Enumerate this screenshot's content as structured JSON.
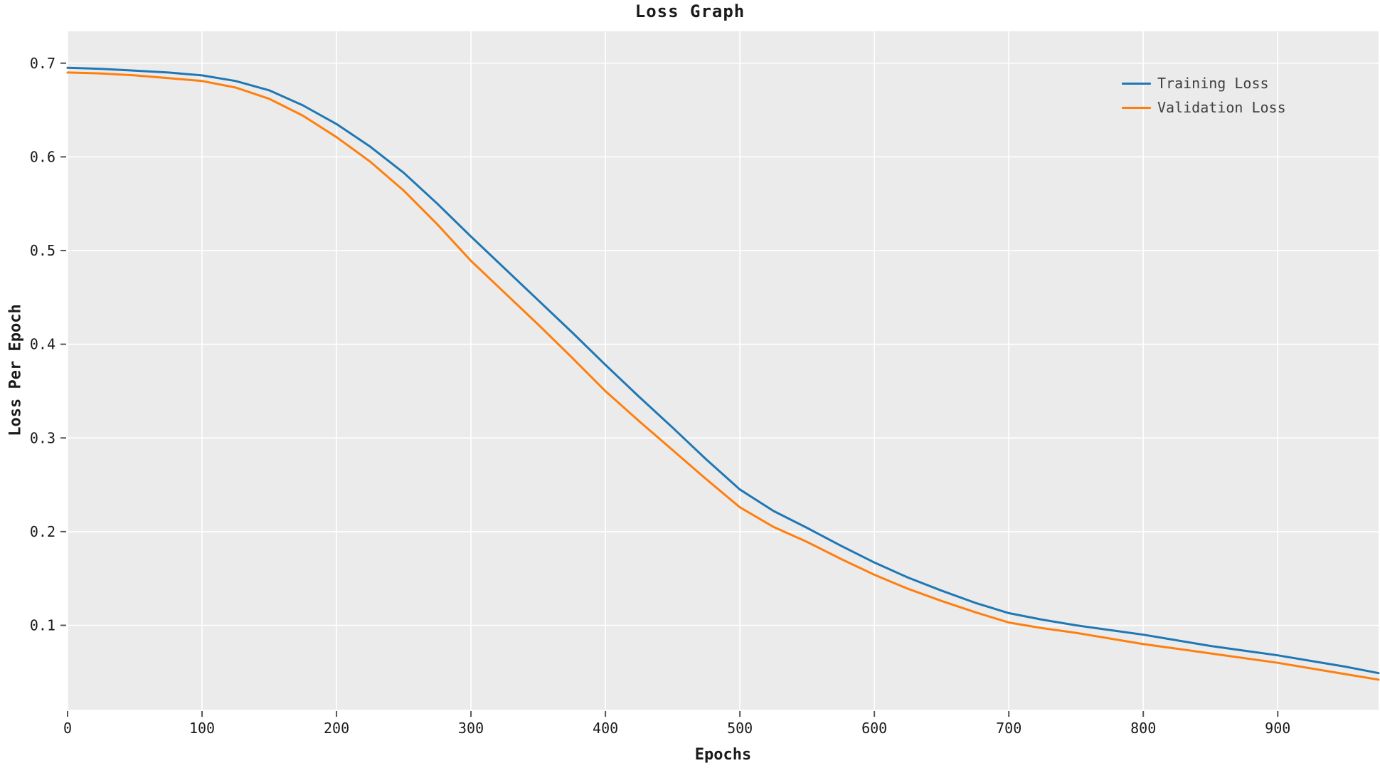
{
  "chart_data": {
    "type": "line",
    "title": "Loss Graph",
    "xlabel": "Epochs",
    "ylabel": "Loss Per Epoch",
    "xlim": [
      0,
      975
    ],
    "ylim": [
      0.01,
      0.734
    ],
    "x_ticks": [
      0,
      100,
      200,
      300,
      400,
      500,
      600,
      700,
      800,
      900
    ],
    "x_tick_labels": [
      "0",
      "100",
      "200",
      "300",
      "400",
      "500",
      "600",
      "700",
      "800",
      "900"
    ],
    "y_ticks": [
      0.1,
      0.2,
      0.3,
      0.4,
      0.5,
      0.6,
      0.7
    ],
    "y_tick_labels": [
      "0.1",
      "0.2",
      "0.3",
      "0.4",
      "0.5",
      "0.6",
      "0.7"
    ],
    "grid": true,
    "legend_position": "upper right",
    "plot_background": "#ebebeb",
    "grid_color": "#ffffff",
    "tick_color": "#555555",
    "text_color": "#1a1a1a",
    "legend_text_color": "#3f3f3f",
    "x": [
      0,
      25,
      50,
      75,
      100,
      125,
      150,
      175,
      200,
      225,
      250,
      275,
      300,
      325,
      350,
      375,
      400,
      425,
      450,
      475,
      500,
      525,
      550,
      575,
      600,
      625,
      650,
      675,
      700,
      725,
      750,
      775,
      800,
      825,
      850,
      875,
      900,
      925,
      950,
      975
    ],
    "series": [
      {
        "name": "Training Loss",
        "color": "#1f77b4",
        "values": [
          0.695,
          0.694,
          0.692,
          0.69,
          0.687,
          0.681,
          0.671,
          0.655,
          0.635,
          0.611,
          0.583,
          0.55,
          0.515,
          0.481,
          0.447,
          0.413,
          0.378,
          0.344,
          0.311,
          0.277,
          0.245,
          0.222,
          0.204,
          0.185,
          0.167,
          0.151,
          0.137,
          0.124,
          0.113,
          0.106,
          0.1,
          0.095,
          0.09,
          0.084,
          0.078,
          0.073,
          0.068,
          0.062,
          0.056,
          0.049
        ]
      },
      {
        "name": "Validation Loss",
        "color": "#ff7f0e",
        "values": [
          0.69,
          0.689,
          0.687,
          0.684,
          0.681,
          0.674,
          0.662,
          0.644,
          0.621,
          0.595,
          0.564,
          0.528,
          0.489,
          0.455,
          0.421,
          0.386,
          0.35,
          0.318,
          0.287,
          0.256,
          0.226,
          0.205,
          0.189,
          0.171,
          0.154,
          0.139,
          0.126,
          0.114,
          0.103,
          0.097,
          0.092,
          0.086,
          0.08,
          0.075,
          0.07,
          0.065,
          0.06,
          0.054,
          0.048,
          0.042
        ]
      }
    ]
  }
}
